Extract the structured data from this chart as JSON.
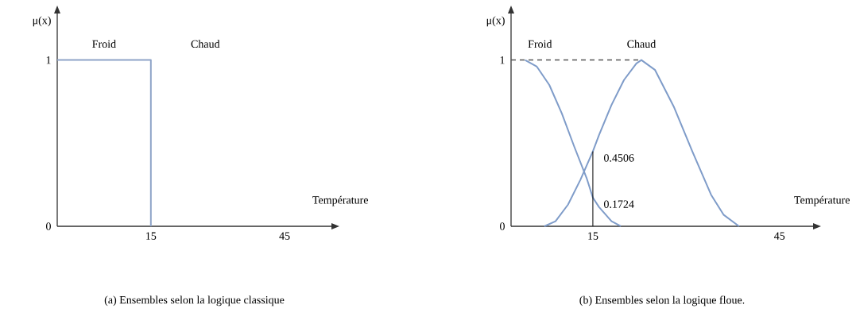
{
  "chart_data": [
    {
      "type": "line",
      "title": "(a) Ensembles selon la logique classique",
      "xlabel": "Température",
      "ylabel": "μ(x)",
      "xlim": [
        -6,
        55.5
      ],
      "ylim": [
        0,
        1.28
      ],
      "xticks": [
        15,
        45
      ],
      "yticks": [
        0,
        1
      ],
      "series": [
        {
          "name": "Froid",
          "color": "#8ea3c8",
          "x": [
            -6,
            15,
            15
          ],
          "values": [
            1,
            1,
            0
          ]
        }
      ],
      "annotations": [
        "Chaud"
      ]
    },
    {
      "type": "line",
      "title": "(b) Ensembles selon la logique floue.",
      "xlabel": "Température",
      "ylabel": "μ(x)",
      "xlim": [
        1.85,
        50.4
      ],
      "ylim": [
        0,
        1.28
      ],
      "xticks": [
        15,
        45
      ],
      "yticks": [
        0,
        1
      ],
      "series": [
        {
          "name": "Froid",
          "color": "#7f9cc9",
          "x": [
            4.1,
            6,
            8,
            10,
            12,
            14,
            15,
            16,
            18,
            19.5
          ],
          "values": [
            1,
            0.96,
            0.85,
            0.68,
            0.48,
            0.29,
            0.1724,
            0.115,
            0.03,
            0
          ]
        },
        {
          "name": "Chaud",
          "color": "#7f9cc9",
          "x": [
            7.2,
            9,
            11,
            13,
            15,
            16,
            18,
            20,
            22,
            22.8,
            25,
            28,
            31,
            34,
            36,
            38.5
          ],
          "values": [
            0,
            0.03,
            0.13,
            0.28,
            0.4506,
            0.55,
            0.73,
            0.88,
            0.98,
            1,
            0.94,
            0.72,
            0.45,
            0.19,
            0.07,
            0
          ]
        }
      ],
      "ref_lines": [
        {
          "axis": "x",
          "value": 15,
          "color": "#000000"
        },
        {
          "axis": "y",
          "value": 1,
          "color": "#555555",
          "line_style": "dashed"
        }
      ],
      "annotations": [
        {
          "text": "0.4506",
          "x": 15,
          "y": 0.4506
        },
        {
          "text": "0.1724",
          "x": 15,
          "y": 0.1724
        }
      ]
    }
  ]
}
